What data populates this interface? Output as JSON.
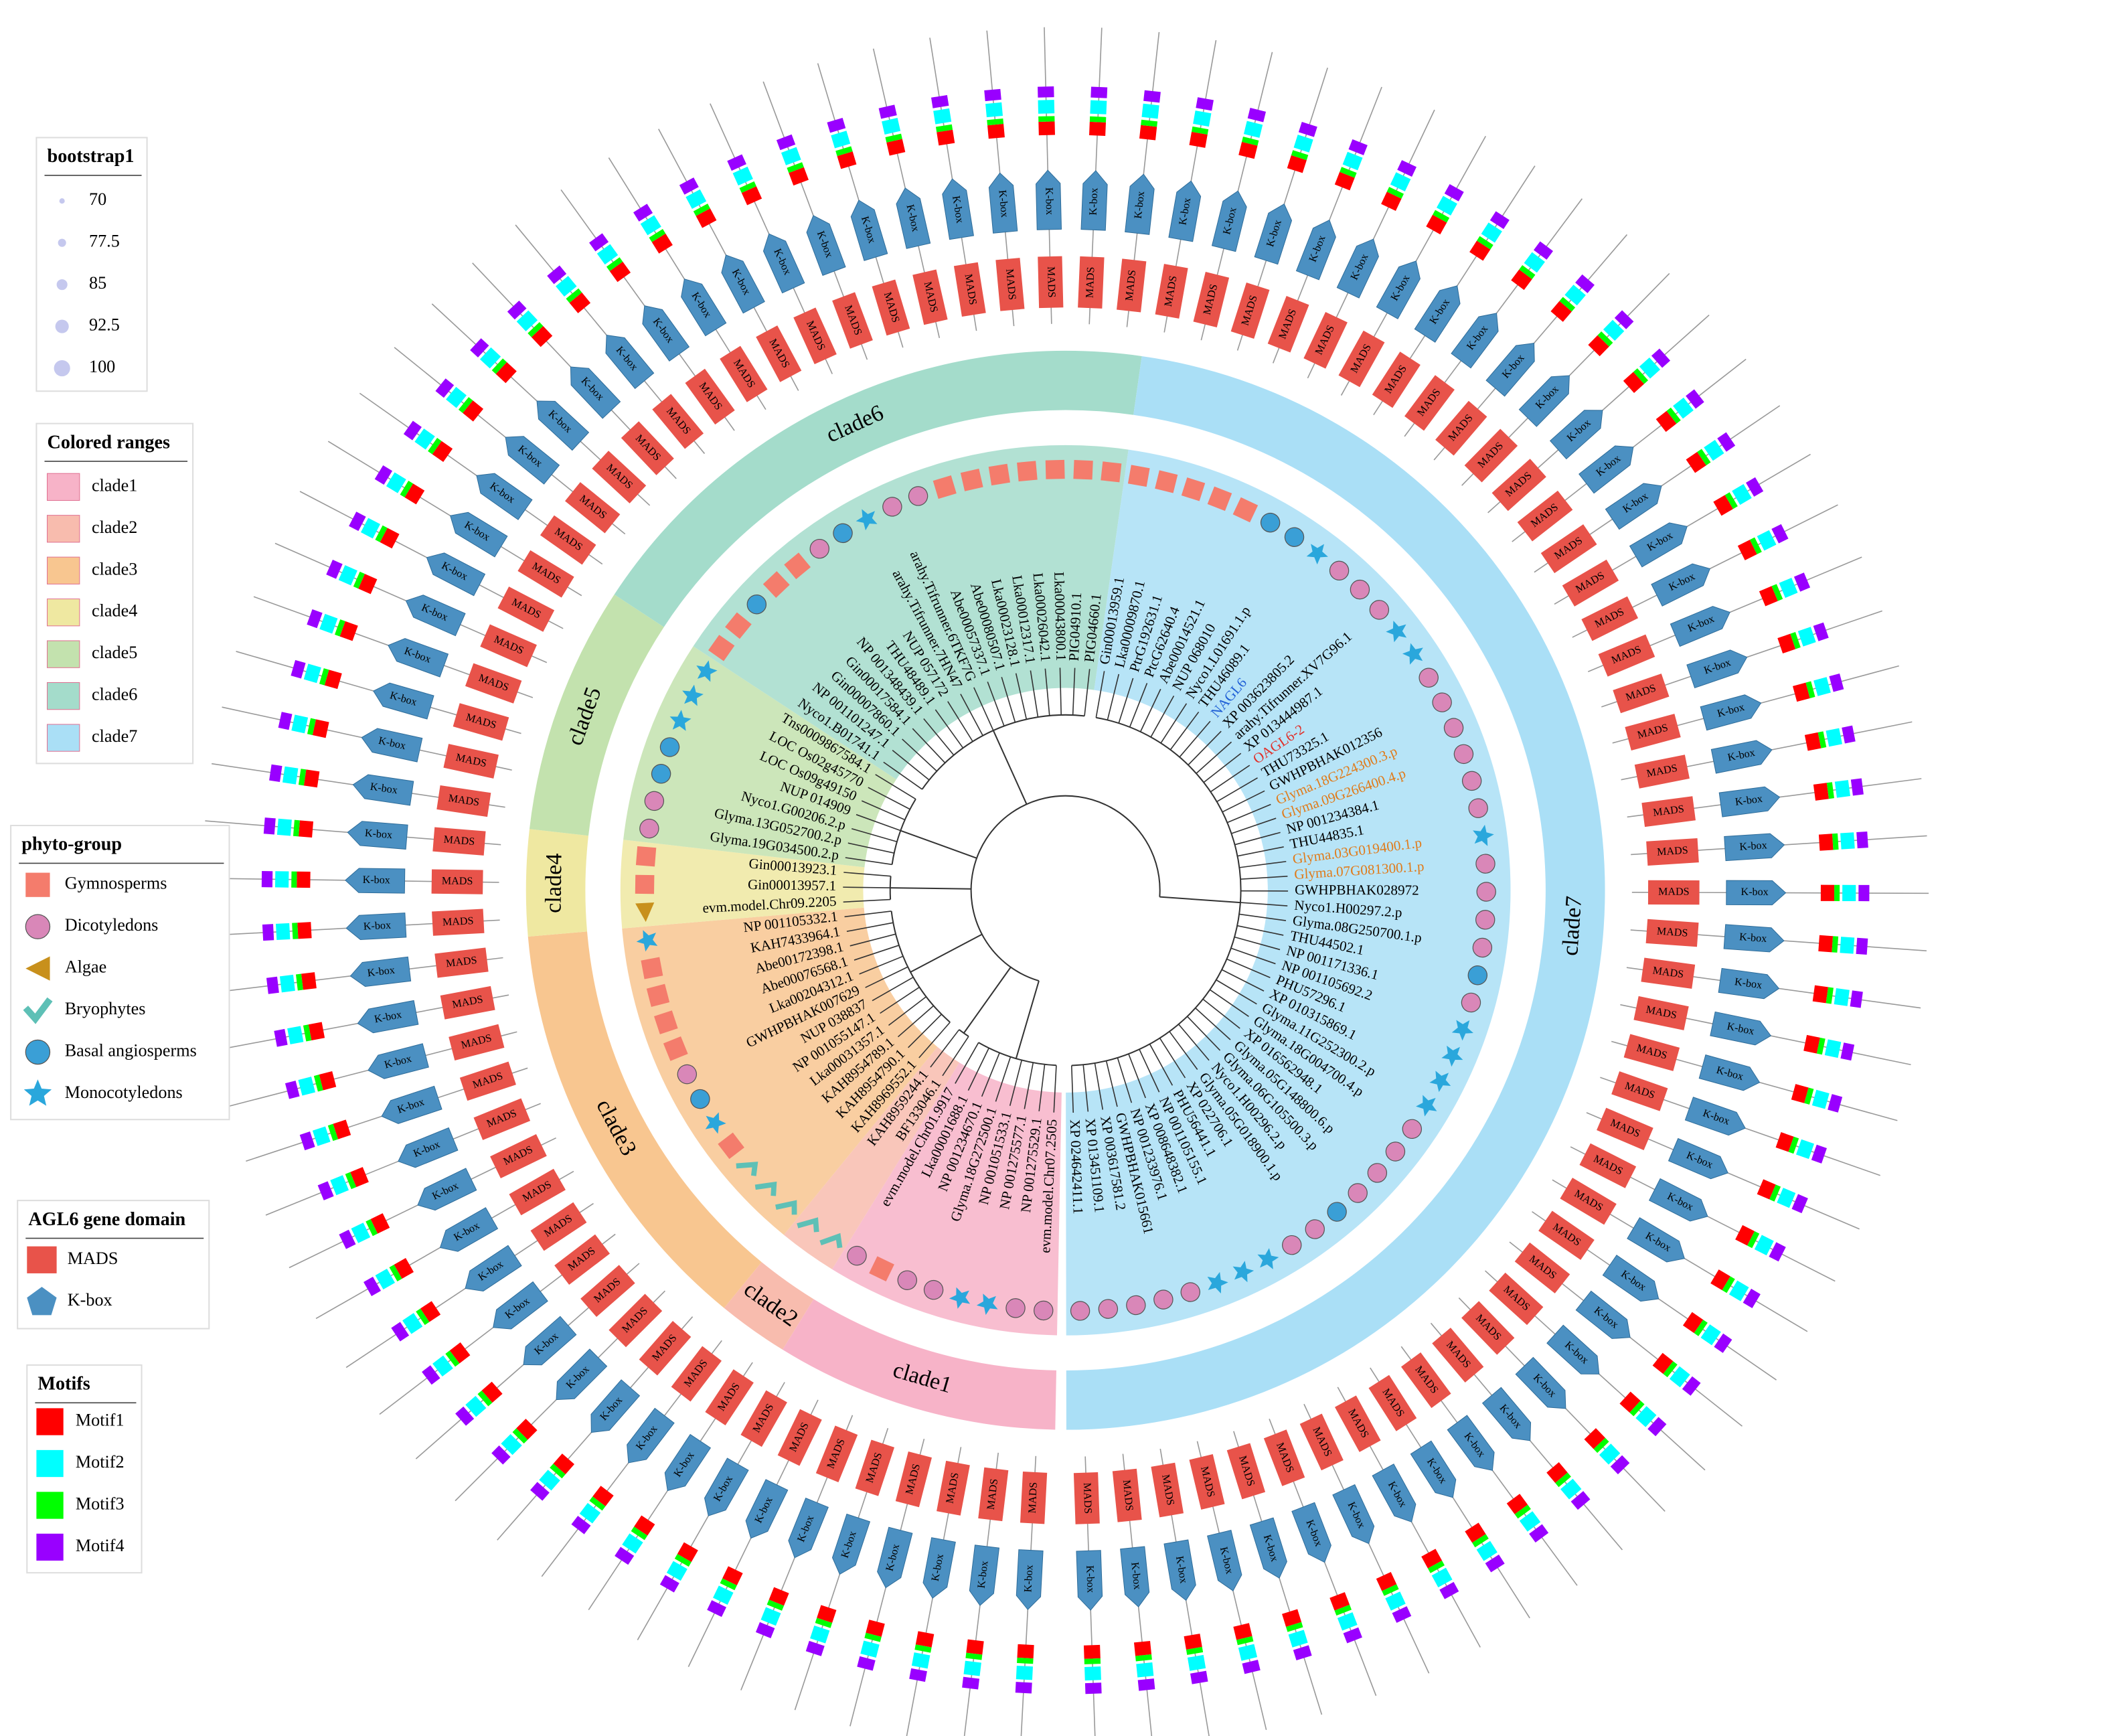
{
  "legends": {
    "bootstrap": {
      "title": "bootstrap1",
      "items": [
        70,
        77.5,
        85,
        92.5,
        100
      ],
      "color": "#c5c8ee"
    },
    "colored_ranges": {
      "title": "Colored ranges",
      "items": [
        {
          "label": "clade1",
          "color": "#f7b3c8"
        },
        {
          "label": "clade2",
          "color": "#f8bcae"
        },
        {
          "label": "clade3",
          "color": "#f8c690"
        },
        {
          "label": "clade4",
          "color": "#efe8a1"
        },
        {
          "label": "clade5",
          "color": "#c3e2ae"
        },
        {
          "label": "clade6",
          "color": "#a4dccb"
        },
        {
          "label": "clade7",
          "color": "#aadff6"
        }
      ]
    },
    "phyto_group": {
      "title": "phyto-group",
      "items": [
        {
          "label": "Gymnosperms",
          "color": "#f47c6c",
          "shape": "square"
        },
        {
          "label": "Dicotyledons",
          "color": "#d987b8",
          "shape": "circle"
        },
        {
          "label": "Algae",
          "color": "#c8901c",
          "shape": "triangle"
        },
        {
          "label": "Bryophytes",
          "color": "#5ec0b6",
          "shape": "check"
        },
        {
          "label": "Basal angiosperms",
          "color": "#3a9fd6",
          "shape": "circle"
        },
        {
          "label": "Monocotyledons",
          "color": "#2aa7dc",
          "shape": "star"
        }
      ]
    },
    "domain": {
      "title": "AGL6 gene domain",
      "items": [
        {
          "label": "MADS",
          "color": "#e8534a"
        },
        {
          "label": "K-box",
          "color": "#4b90c2"
        }
      ]
    },
    "motifs": {
      "title": "Motifs",
      "items": [
        {
          "label": "Motif1",
          "color": "#ff0000"
        },
        {
          "label": "Motif2",
          "color": "#00ffff"
        },
        {
          "label": "Motif3",
          "color": "#00ff00"
        },
        {
          "label": "Motif4",
          "color": "#9900ff"
        }
      ]
    }
  },
  "tree": {
    "clades": [
      {
        "leaves": [
          {
            "label": "evm.model.Chr07.2505",
            "group": 1
          },
          {
            "label": "NP 001275529.1",
            "group": 1
          },
          {
            "label": "NP 001275577.1",
            "group": 5
          },
          {
            "label": "NP 001051533.1",
            "group": 5
          },
          {
            "label": "Glyma.18G272500.1",
            "group": 1
          },
          {
            "label": "NP 001234670.1",
            "group": 1
          },
          {
            "label": "Lka00001688.1",
            "group": 0
          },
          {
            "label": "evm.model.Chr01.9917",
            "group": 1
          }
        ]
      },
      {
        "leaves": [
          {
            "label": "BF133046.1",
            "group": 3
          },
          {
            "label": "KAH8959244.1",
            "group": 3
          }
        ]
      },
      {
        "leaves": [
          {
            "label": "KAH8969552.1",
            "group": 3
          },
          {
            "label": "KAH8954790.1",
            "group": 3
          },
          {
            "label": "KAH8954789.1",
            "group": 3
          },
          {
            "label": "Lka00031357.1",
            "group": 0
          },
          {
            "label": "NP 001055147.1",
            "group": 5
          },
          {
            "label": "NUP 038837",
            "group": 4
          },
          {
            "label": "GWHPBHAK007629",
            "group": 1
          },
          {
            "label": "Lka00204312.1",
            "group": 0
          },
          {
            "label": "Abe00076568.1",
            "group": 0
          },
          {
            "label": "Abe00172398.1",
            "group": 0
          },
          {
            "label": "KAH7433964.1",
            "group": 0
          },
          {
            "label": "NP 001105332.1",
            "group": 5
          }
        ]
      },
      {
        "leaves": [
          {
            "label": "evm.model.Chr09.2205",
            "group": 2
          },
          {
            "label": "Gin00013957.1",
            "group": 0
          },
          {
            "label": "Gin00013923.1",
            "group": 0
          }
        ]
      },
      {
        "leaves": [
          {
            "label": "Glyma.19G034500.2.p",
            "group": 1
          },
          {
            "label": "Glyma.13G052700.2.p",
            "group": 1
          },
          {
            "label": "Nyco1.G00206.2.p",
            "group": 4
          },
          {
            "label": "NUP 014909",
            "group": 4
          },
          {
            "label": "LOC Os09g49150",
            "group": 5
          },
          {
            "label": "LOC Os02g45770",
            "group": 5
          },
          {
            "label": "Tns0009867584.1",
            "group": 5
          }
        ]
      },
      {
        "leaves": [
          {
            "label": "Nyco1.B01741.1",
            "group": 0
          },
          {
            "label": "NP 001101247.1",
            "group": 0
          },
          {
            "label": "Gin00007860.1",
            "group": 4
          },
          {
            "label": "Gin00017584.1",
            "group": 0
          },
          {
            "label": "NP 001348439.1",
            "group": 0
          },
          {
            "label": "THU48489.1",
            "group": 1
          },
          {
            "label": "NUP 057172",
            "group": 4
          },
          {
            "label": "arahy.Tifrunner.7HN47",
            "group": 5
          },
          {
            "label": "arahy.Tifrunner.6TKF7G",
            "group": 1
          },
          {
            "label": "Abe00057337.1",
            "group": 1
          },
          {
            "label": "Abe00080507.1",
            "group": 0
          },
          {
            "label": "Lka00023128.1",
            "group": 0
          },
          {
            "label": "Lka00012317.1",
            "group": 0
          },
          {
            "label": "Lka00026042.1",
            "group": 0
          },
          {
            "label": "Lka00043800.1",
            "group": 0
          },
          {
            "label": "PIG04910.1",
            "group": 0
          },
          {
            "label": "PIG04660.1",
            "group": 0
          }
        ]
      },
      {
        "leaves": [
          {
            "label": "Gin00013959.1",
            "group": 0
          },
          {
            "label": "Lka00009870.1",
            "group": 0
          },
          {
            "label": "PtrG192631.1",
            "group": 0
          },
          {
            "label": "PtcG62640.4",
            "group": 0
          },
          {
            "label": "Abe00014521.1",
            "group": 0
          },
          {
            "label": "NUP 068010",
            "group": 4
          },
          {
            "label": "Nyco1.L01691.1.p",
            "group": 4
          },
          {
            "label": "THU46089.1",
            "group": 5
          },
          {
            "label": "NAGL6",
            "group": 1,
            "color": "#1f5fd6"
          },
          {
            "label": "XP 003623805.2",
            "group": 1
          },
          {
            "label": "arahy.Tifrunner.XV7G96.1",
            "group": 1
          },
          {
            "label": "XP 013444987.1",
            "group": 5
          },
          {
            "label": "OAGL6-2",
            "group": 5,
            "color": "#e0302a"
          },
          {
            "label": "THU73325.1",
            "group": 1
          },
          {
            "label": "GWHPBHAK012356",
            "group": 1
          },
          {
            "label": "Glyma.18G224300.3.p",
            "group": 1,
            "color": "#e07b1a"
          },
          {
            "label": "Glyma.09G266400.4.p",
            "group": 1,
            "color": "#e07b1a"
          },
          {
            "label": "NP 001234384.1",
            "group": 1
          },
          {
            "label": "THU44835.1",
            "group": 1
          },
          {
            "label": "Glyma.03G019400.1.p",
            "group": 5,
            "color": "#e07b1a"
          },
          {
            "label": "Glyma.07G081300.1.p",
            "group": 1,
            "color": "#e07b1a"
          },
          {
            "label": "GWHPBHAK028972",
            "group": 1
          },
          {
            "label": "Nyco1.H00297.2.p",
            "group": 1
          },
          {
            "label": "Glyma.08G250700.1.p",
            "group": 1
          },
          {
            "label": "THU44502.1",
            "group": 4
          },
          {
            "label": "NP 001171336.1",
            "group": 1
          },
          {
            "label": "NP 001105692.2",
            "group": 5
          },
          {
            "label": "PHU57296.1",
            "group": 5
          },
          {
            "label": "XP 010315869.1",
            "group": 5
          },
          {
            "label": "Glyma.11G252300.2.p",
            "group": 5
          },
          {
            "label": "Glyma.18G004700.4.p",
            "group": 1
          },
          {
            "label": "XP 016562948.1",
            "group": 1
          },
          {
            "label": "Glyma.05G148800.6.p",
            "group": 1
          },
          {
            "label": "Glyma.06G105500.3.p",
            "group": 1
          },
          {
            "label": "Nyco1.H00296.2.p",
            "group": 4
          },
          {
            "label": "Glyma.05G018900.1.p",
            "group": 1
          },
          {
            "label": "XP 022706.1",
            "group": 1
          },
          {
            "label": "PHU56441.1",
            "group": 5
          },
          {
            "label": "NP 001105155.1",
            "group": 5
          },
          {
            "label": "XP 008648382.1",
            "group": 5
          },
          {
            "label": "NP 001233976.1",
            "group": 1
          },
          {
            "label": "GWHPBHAK015661",
            "group": 1
          },
          {
            "label": "XP 003617581.2",
            "group": 1
          },
          {
            "label": "XP 013451109.1",
            "group": 1
          },
          {
            "label": "XP 024642411.1",
            "group": 1
          }
        ]
      }
    ]
  }
}
